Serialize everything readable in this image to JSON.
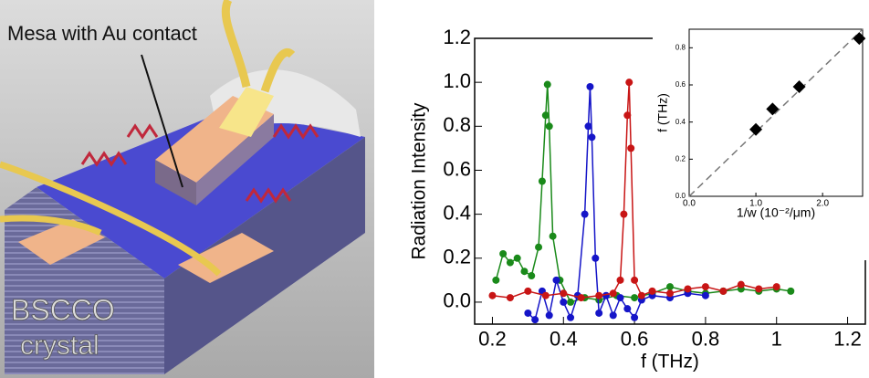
{
  "illustration": {
    "label": "Mesa with Au contact",
    "crystal_label": [
      "BSCCO",
      "crystal"
    ]
  },
  "chart_data": [
    {
      "type": "line",
      "y_label": "Radiation Intensity",
      "x_label": "f (THz)",
      "xlim": [
        0.15,
        1.25
      ],
      "xticks": [
        0.2,
        0.4,
        0.6,
        0.8,
        1,
        1.2
      ],
      "ylim": [
        -0.1,
        1.2
      ],
      "yticks": [
        {
          "value": 0,
          "label": "0.0"
        },
        0.2,
        0.4,
        0.6,
        0.8,
        {
          "value": 1,
          "label": "1.0"
        },
        1.2
      ],
      "series": [
        {
          "color": "#1a8a1a",
          "x": [
            0.21,
            0.23,
            0.25,
            0.27,
            0.29,
            0.31,
            0.33,
            0.34,
            0.35,
            0.355,
            0.36,
            0.37,
            0.39,
            0.42,
            0.46,
            0.5,
            0.55,
            0.6,
            0.65,
            0.7,
            0.75,
            0.8,
            0.85,
            0.9,
            0.95,
            1.0,
            1.04
          ],
          "values": [
            0.1,
            0.22,
            0.18,
            0.2,
            0.14,
            0.12,
            0.25,
            0.55,
            0.85,
            0.99,
            0.8,
            0.3,
            0.1,
            0.0,
            0.02,
            0.01,
            0.03,
            0.02,
            0.04,
            0.07,
            0.05,
            0.04,
            0.05,
            0.06,
            0.05,
            0.06,
            0.05
          ]
        },
        {
          "color": "#1515c8",
          "x": [
            0.3,
            0.32,
            0.34,
            0.36,
            0.38,
            0.4,
            0.42,
            0.44,
            0.46,
            0.47,
            0.475,
            0.48,
            0.49,
            0.5,
            0.52,
            0.54,
            0.56,
            0.58,
            0.6,
            0.62,
            0.65,
            0.7,
            0.75,
            0.8
          ],
          "values": [
            -0.05,
            -0.08,
            0.05,
            -0.06,
            0.1,
            0.0,
            -0.07,
            0.03,
            0.4,
            0.8,
            0.98,
            0.75,
            0.2,
            -0.05,
            0.03,
            -0.06,
            0.02,
            -0.03,
            -0.07,
            0.01,
            0.03,
            0.02,
            0.04,
            0.03
          ]
        },
        {
          "color": "#c81515",
          "x": [
            0.2,
            0.25,
            0.3,
            0.35,
            0.4,
            0.45,
            0.5,
            0.54,
            0.56,
            0.57,
            0.58,
            0.585,
            0.59,
            0.6,
            0.62,
            0.65,
            0.7,
            0.75,
            0.8,
            0.85,
            0.9,
            0.95,
            1.0
          ],
          "values": [
            0.03,
            0.02,
            0.05,
            0.03,
            0.04,
            0.02,
            0.03,
            0.04,
            0.1,
            0.4,
            0.85,
            1.0,
            0.7,
            0.1,
            0.03,
            0.05,
            0.04,
            0.06,
            0.07,
            0.05,
            0.08,
            0.06,
            0.07
          ]
        }
      ]
    },
    {
      "type": "scatter",
      "y_label": "f (THz)",
      "x_label": "1/w (10⁻²/μm)",
      "xlim": [
        0,
        2.6
      ],
      "xticks": [
        {
          "value": 0,
          "label": "0.0"
        },
        {
          "value": 1,
          "label": "1.0"
        },
        {
          "value": 2,
          "label": "2.0"
        }
      ],
      "ylim": [
        0,
        0.9
      ],
      "yticks": [
        {
          "value": 0,
          "label": "0.0"
        },
        0.2,
        0.4,
        0.6,
        0.8
      ],
      "color": "#000000",
      "x": [
        1.0,
        1.25,
        1.65,
        2.55
      ],
      "values": [
        0.36,
        0.47,
        0.59,
        0.85
      ]
    }
  ]
}
